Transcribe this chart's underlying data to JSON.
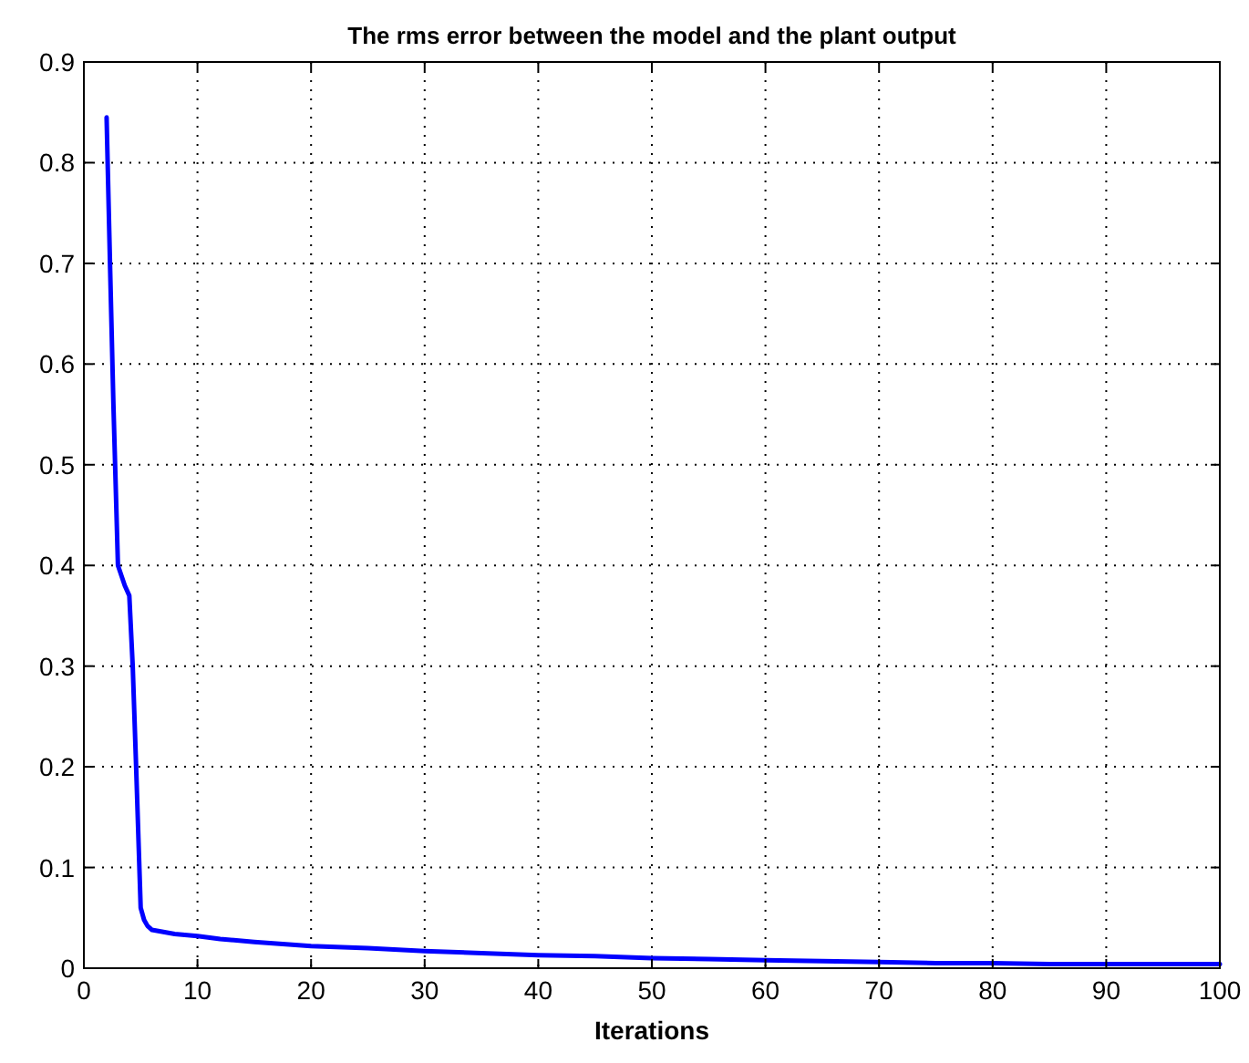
{
  "chart_data": {
    "type": "line",
    "title": "The rms error between the model and the plant output",
    "xlabel": "Iterations",
    "xlim": [
      0,
      100
    ],
    "xticks": [
      0,
      10,
      20,
      30,
      40,
      50,
      60,
      70,
      80,
      90,
      100
    ],
    "ylim": [
      0,
      0.9
    ],
    "yticks": [
      0,
      0.1,
      0.2,
      0.3,
      0.4,
      0.5,
      0.6,
      0.7,
      0.8,
      0.9
    ],
    "grid": true,
    "series": [
      {
        "color": "#0000ff",
        "x": [
          2,
          2.3,
          2.6,
          3,
          3.3,
          3.6,
          4,
          4.3,
          4.6,
          5,
          5.3,
          5.6,
          6,
          7,
          8,
          10,
          12,
          15,
          20,
          25,
          30,
          35,
          40,
          45,
          50,
          55,
          60,
          65,
          70,
          75,
          80,
          85,
          90,
          95,
          100
        ],
        "values": [
          0.845,
          0.7,
          0.56,
          0.4,
          0.39,
          0.38,
          0.37,
          0.3,
          0.2,
          0.06,
          0.048,
          0.042,
          0.038,
          0.036,
          0.034,
          0.032,
          0.029,
          0.026,
          0.022,
          0.02,
          0.017,
          0.015,
          0.013,
          0.012,
          0.01,
          0.009,
          0.008,
          0.007,
          0.006,
          0.005,
          0.005,
          0.004,
          0.004,
          0.004,
          0.004
        ]
      }
    ]
  }
}
